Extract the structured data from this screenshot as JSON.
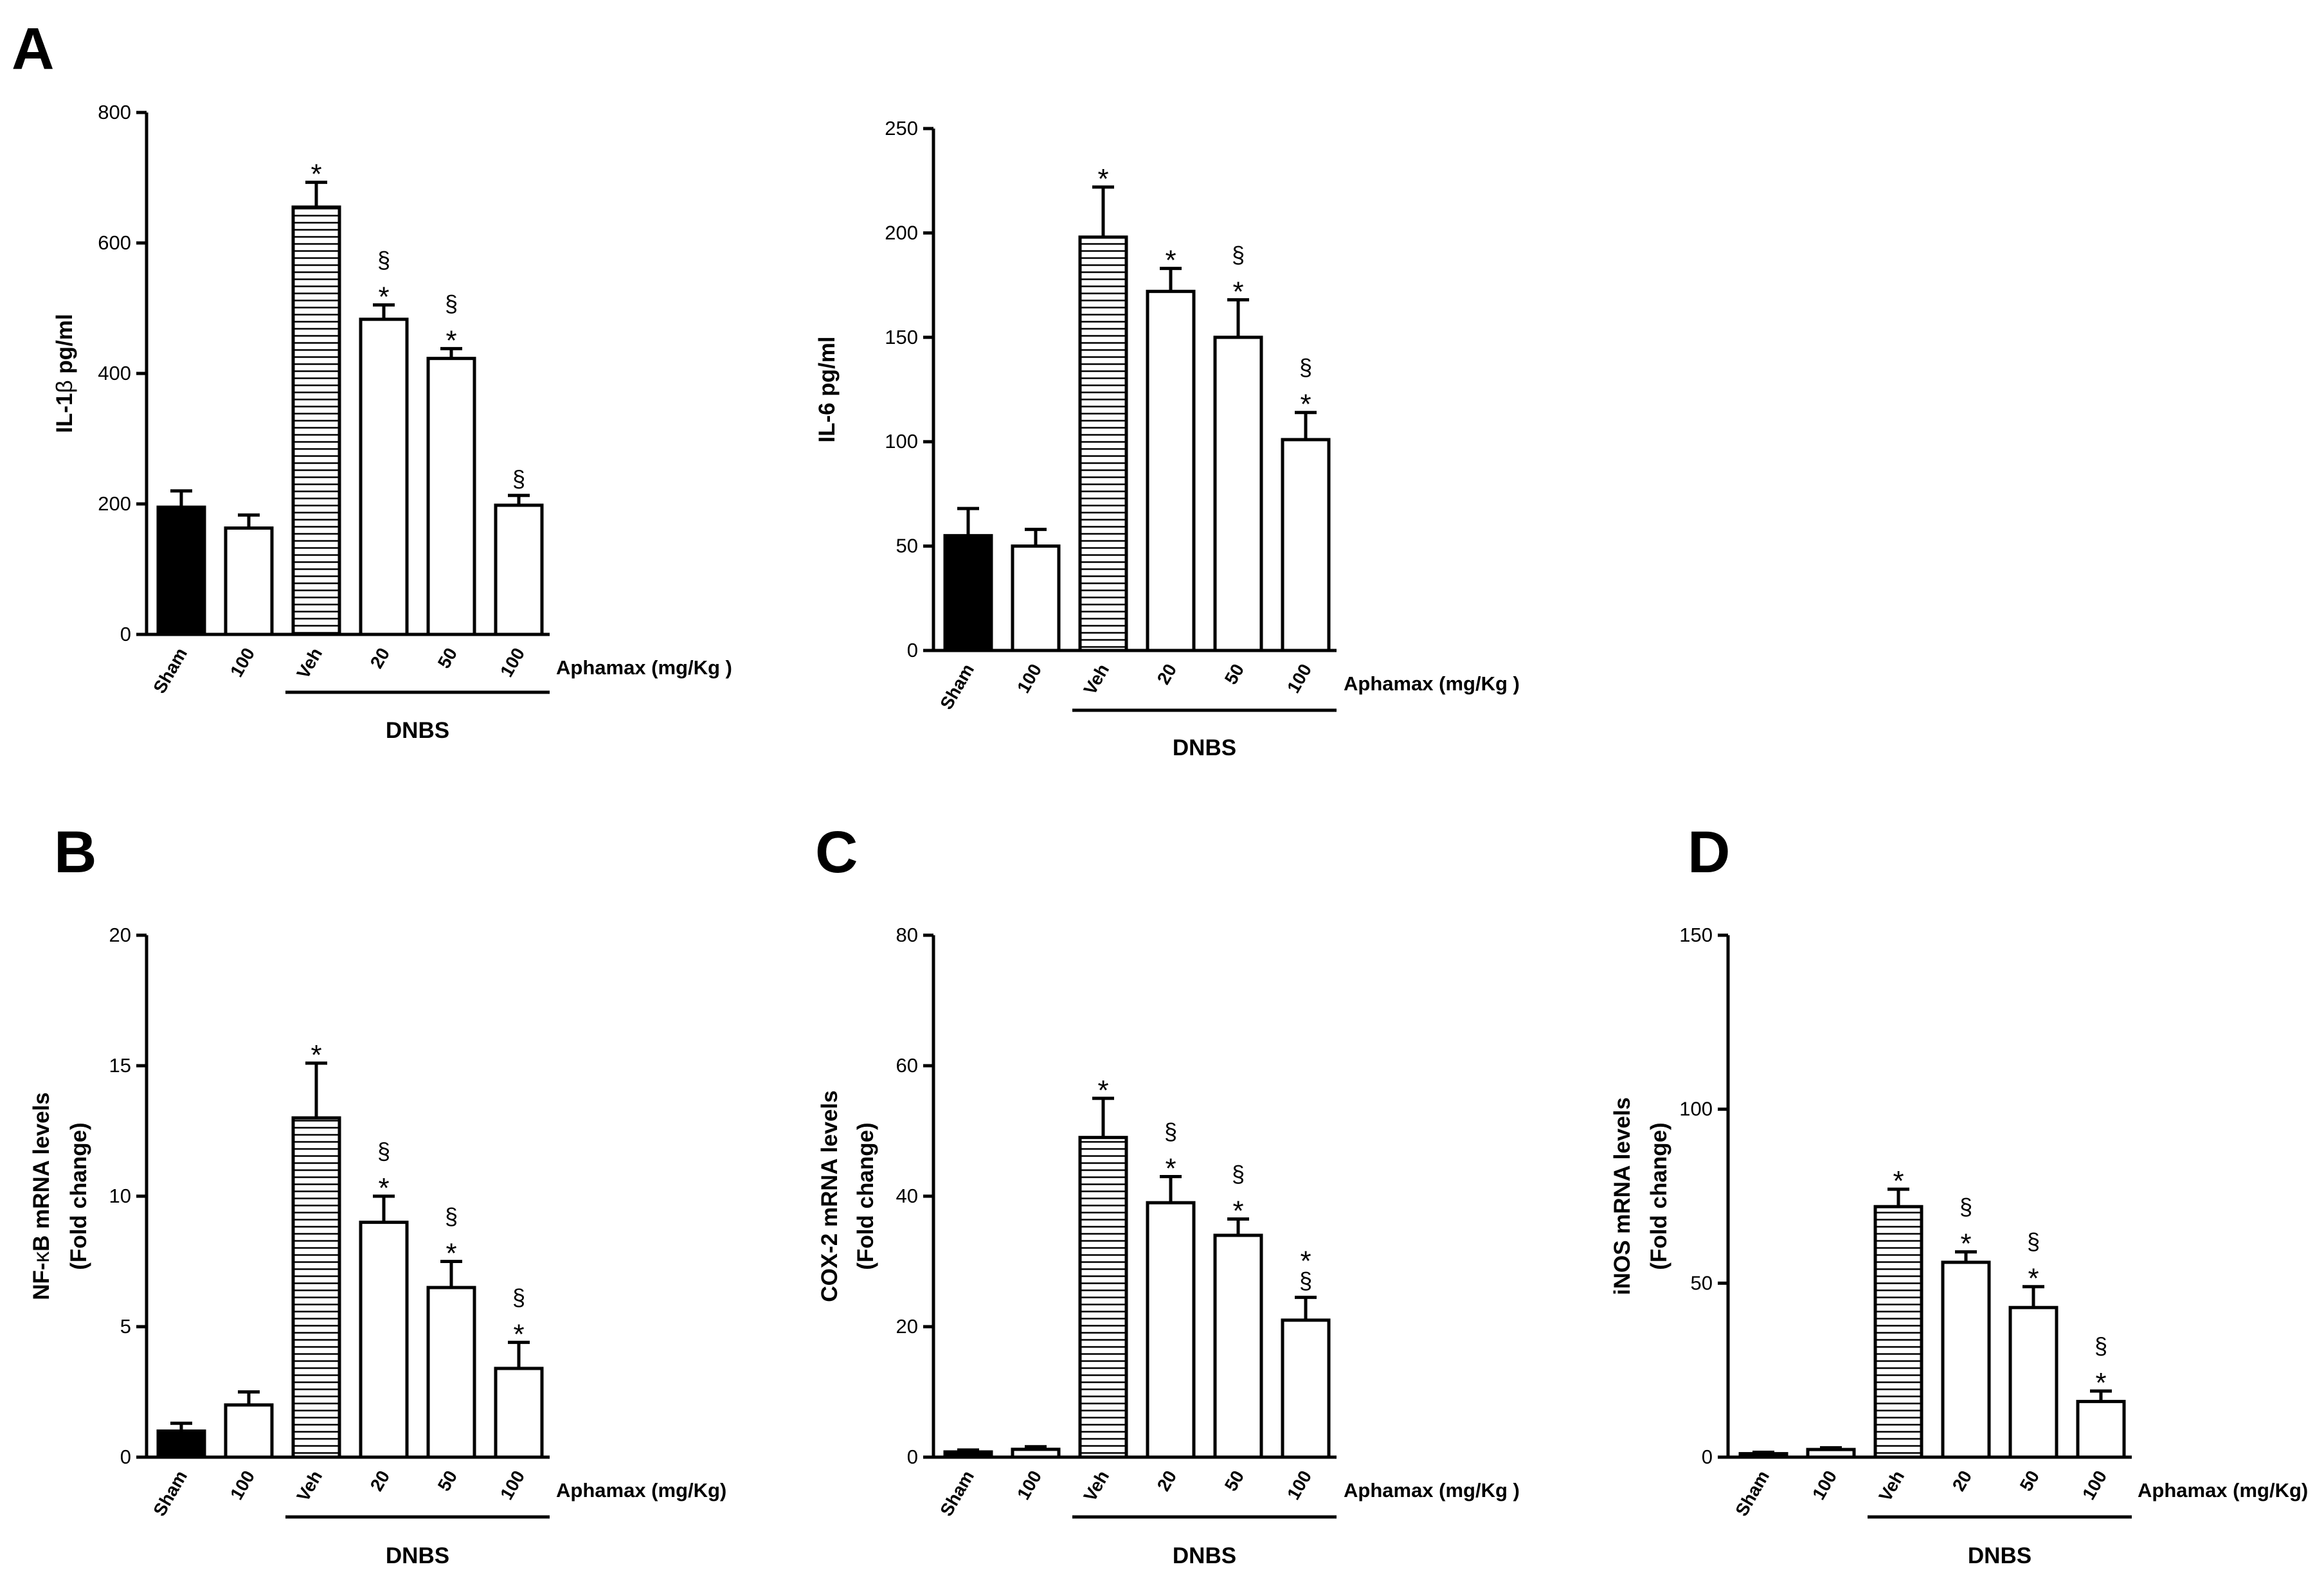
{
  "chart_data": [
    {
      "panel": "A",
      "type": "bar",
      "ylabel_parts": [
        "IL-1",
        "β",
        " pg/ml"
      ],
      "ylabel2": "",
      "ylim": [
        0,
        800
      ],
      "yticks": [
        0,
        200,
        400,
        600,
        800
      ],
      "categories": [
        "Sham",
        "100",
        "Veh",
        "20",
        "50",
        "100"
      ],
      "values": [
        195,
        163,
        655,
        483,
        423,
        198
      ],
      "errors": [
        25,
        20,
        38,
        22,
        15,
        15
      ],
      "fills": [
        "solid",
        "white",
        "hatched",
        "white",
        "white",
        "white"
      ],
      "annotations": [
        [],
        [],
        [
          "*"
        ],
        [
          "§",
          "*"
        ],
        [
          "§",
          "*"
        ],
        [
          "§"
        ]
      ],
      "aphamax_label": "Aphamax (mg/Kg )",
      "group_label": "DNBS",
      "group_span": [
        2,
        5
      ]
    },
    {
      "panel": "",
      "type": "bar",
      "ylabel_parts": [
        "IL-6 pg/ml"
      ],
      "ylabel2": "",
      "ylim": [
        0,
        250
      ],
      "yticks": [
        0,
        50,
        100,
        150,
        200,
        250
      ],
      "categories": [
        "Sham",
        "100",
        "Veh",
        "20",
        "50",
        "100"
      ],
      "values": [
        55,
        50,
        198,
        172,
        150,
        101
      ],
      "errors": [
        13,
        8,
        24,
        11,
        18,
        13
      ],
      "fills": [
        "solid",
        "white",
        "hatched",
        "white",
        "white",
        "white"
      ],
      "annotations": [
        [],
        [],
        [
          "*"
        ],
        [
          "*"
        ],
        [
          "§",
          "*"
        ],
        [
          "§",
          "*"
        ]
      ],
      "aphamax_label": "Aphamax (mg/Kg )",
      "group_label": "DNBS",
      "group_span": [
        2,
        5
      ]
    },
    {
      "panel": "B",
      "type": "bar",
      "ylabel_parts": [
        "NF-",
        "κ",
        "B mRNA levels"
      ],
      "ylabel2": "(Fold change)",
      "ylim": [
        0,
        20
      ],
      "yticks": [
        0,
        5,
        10,
        15,
        20
      ],
      "categories": [
        "Sham",
        "100",
        "Veh",
        "20",
        "50",
        "100"
      ],
      "values": [
        1,
        2,
        13,
        9,
        6.5,
        3.4
      ],
      "errors": [
        0.3,
        0.5,
        2.1,
        1.0,
        1.0,
        1.0
      ],
      "fills": [
        "solid",
        "white",
        "hatched",
        "white",
        "white",
        "white"
      ],
      "annotations": [
        [],
        [],
        [
          "*"
        ],
        [
          "§",
          "*"
        ],
        [
          "§",
          "*"
        ],
        [
          "§",
          "*"
        ]
      ],
      "aphamax_label": "Aphamax (mg/Kg)",
      "group_label": "DNBS",
      "group_span": [
        2,
        5
      ]
    },
    {
      "panel": "C",
      "type": "bar",
      "ylabel_parts": [
        "COX-2 mRNA levels"
      ],
      "ylabel2": "(Fold change)",
      "ylim": [
        0,
        80
      ],
      "yticks": [
        0,
        20,
        40,
        60,
        80
      ],
      "categories": [
        "Sham",
        "100",
        "Veh",
        "20",
        "50",
        "100"
      ],
      "values": [
        0.8,
        1.2,
        49,
        39,
        34,
        21
      ],
      "errors": [
        0.3,
        0.4,
        6,
        4,
        2.5,
        3.5
      ],
      "fills": [
        "solid",
        "white",
        "hatched",
        "white",
        "white",
        "white"
      ],
      "annotations": [
        [],
        [],
        [
          "*"
        ],
        [
          "§",
          "*"
        ],
        [
          "§",
          "*"
        ],
        [
          "*",
          "§"
        ]
      ],
      "aphamax_label": "Aphamax (mg/Kg )",
      "group_label": "DNBS",
      "group_span": [
        2,
        5
      ]
    },
    {
      "panel": "D",
      "type": "bar",
      "ylabel_parts": [
        "iNOS mRNA levels"
      ],
      "ylabel2": "(Fold change)",
      "ylim": [
        0,
        150
      ],
      "yticks": [
        0,
        50,
        100,
        150
      ],
      "categories": [
        "Sham",
        "100",
        "Veh",
        "20",
        "50",
        "100"
      ],
      "values": [
        1,
        2.2,
        72,
        56,
        43,
        16
      ],
      "errors": [
        0.4,
        0.5,
        5,
        3,
        6,
        3
      ],
      "fills": [
        "solid",
        "white",
        "hatched",
        "white",
        "white",
        "white"
      ],
      "annotations": [
        [],
        [],
        [
          "*"
        ],
        [
          "§",
          "*"
        ],
        [
          "§",
          "*"
        ],
        [
          "§",
          "*"
        ]
      ],
      "aphamax_label": "Aphamax (mg/Kg)",
      "group_label": "DNBS",
      "group_span": [
        2,
        5
      ]
    }
  ]
}
